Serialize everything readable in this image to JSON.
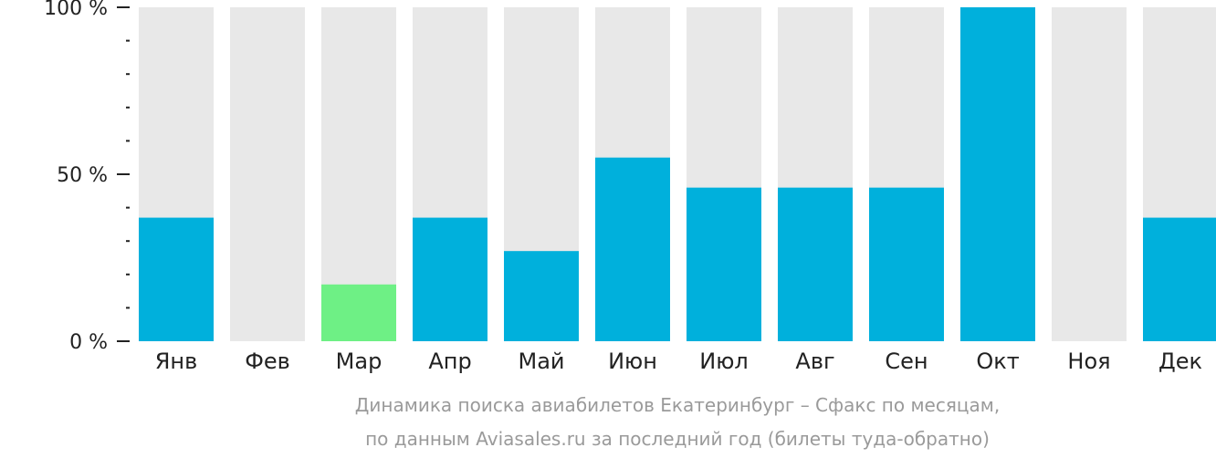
{
  "chart_data": {
    "type": "bar",
    "categories": [
      "Янв",
      "Фев",
      "Мар",
      "Апр",
      "Май",
      "Июн",
      "Июл",
      "Авг",
      "Сен",
      "Окт",
      "Ноя",
      "Дек"
    ],
    "values": [
      37,
      0,
      17,
      37,
      27,
      55,
      46,
      46,
      46,
      100,
      0,
      37
    ],
    "ylim": [
      0,
      100
    ],
    "y_ticks": [
      {
        "value": 0,
        "label": "0 %"
      },
      {
        "value": 50,
        "label": "50 %"
      },
      {
        "value": 100,
        "label": "100 %"
      }
    ],
    "minor_tick_step": 10,
    "title": "",
    "xlabel": "",
    "ylabel": "",
    "caption_lines": [
      "Динамика поиска авиабилетов Екатеринбург – Сфакс по месяцам,",
      "по данным Aviasales.ru за последний год (билеты туда-обратно)"
    ],
    "highlight_category": "Мар",
    "colors": {
      "bar": "#00b0dc",
      "highlight": "#6ef085",
      "background_bar": "#e8e8e8",
      "axis": "#222222",
      "caption": "#9a9a9a"
    },
    "legend": "none",
    "grid": false
  }
}
